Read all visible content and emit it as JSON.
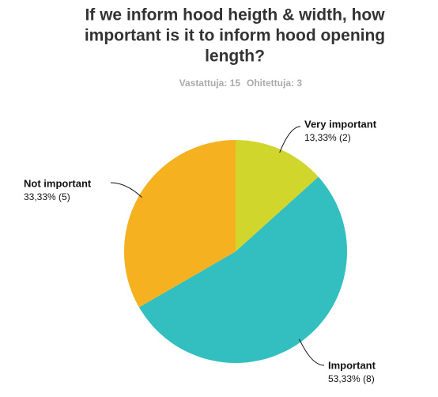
{
  "chart_data": {
    "type": "pie",
    "title": [
      "If we inform hood heigth & width, how",
      "important is it to inform hood opening",
      "length?"
    ],
    "subtitle": [
      "Vastattuja: 15",
      "Ohitettuja: 3"
    ],
    "categories": [
      "Very important",
      "Important",
      "Not important"
    ],
    "values": [
      13.33,
      53.33,
      33.33
    ],
    "value_labels": [
      "13,33% (2)",
      "53,33% (8)",
      "33,33% (5)"
    ],
    "colors": [
      "#d0d62c",
      "#33bfbf",
      "#f5b120"
    ]
  }
}
